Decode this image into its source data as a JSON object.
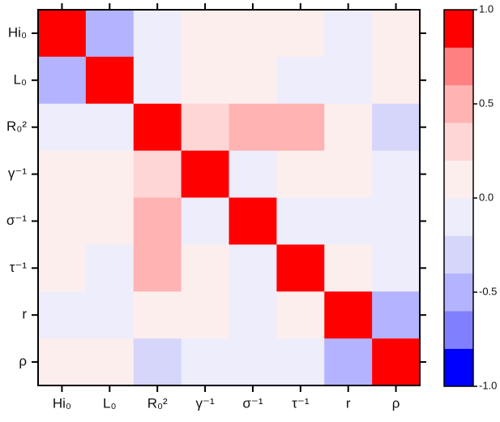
{
  "chart_data": {
    "type": "heatmap",
    "categories": [
      "Hi₀",
      "L₀",
      "R₀²",
      "γ⁻¹",
      "σ⁻¹",
      "τ⁻¹",
      "r",
      "ρ"
    ],
    "values": [
      [
        1,
        -0.5,
        -0.1,
        0.1,
        0.1,
        0.1,
        -0.1,
        0.1
      ],
      [
        -0.5,
        1,
        -0.1,
        0.1,
        0.1,
        -0.1,
        -0.1,
        0.1
      ],
      [
        -0.1,
        -0.1,
        1,
        0.3,
        0.5,
        0.5,
        0.1,
        -0.3
      ],
      [
        0.1,
        0.1,
        0.3,
        1,
        -0.1,
        0.1,
        0.1,
        -0.1
      ],
      [
        0.1,
        0.1,
        0.5,
        -0.1,
        1,
        -0.1,
        -0.1,
        -0.1
      ],
      [
        0.1,
        -0.1,
        0.5,
        0.1,
        -0.1,
        1,
        0.1,
        -0.1
      ],
      [
        -0.1,
        -0.1,
        0.1,
        0.1,
        -0.1,
        0.1,
        1,
        -0.5
      ],
      [
        0.1,
        0.1,
        -0.3,
        -0.1,
        -0.1,
        -0.1,
        -0.5,
        1
      ]
    ],
    "colorbar": {
      "levels": [
        -1,
        -0.8,
        -0.6,
        -0.4,
        -0.2,
        0,
        0.2,
        0.4,
        0.6,
        0.8,
        1
      ],
      "colors": [
        "#0000ff",
        "#8080ff",
        "#b3b3ff",
        "#d6d6fb",
        "#ededfb",
        "#fdeeee",
        "#ffd6d6",
        "#ffb3b3",
        "#ff8080",
        "#ff0000"
      ],
      "lim": [
        -1,
        1
      ],
      "ticks": [
        {
          "value": 1,
          "label": "1.0"
        },
        0.5,
        {
          "value": 0,
          "label": "0.0"
        },
        -0.5,
        {
          "value": -1,
          "label": "-1.0"
        }
      ]
    }
  }
}
